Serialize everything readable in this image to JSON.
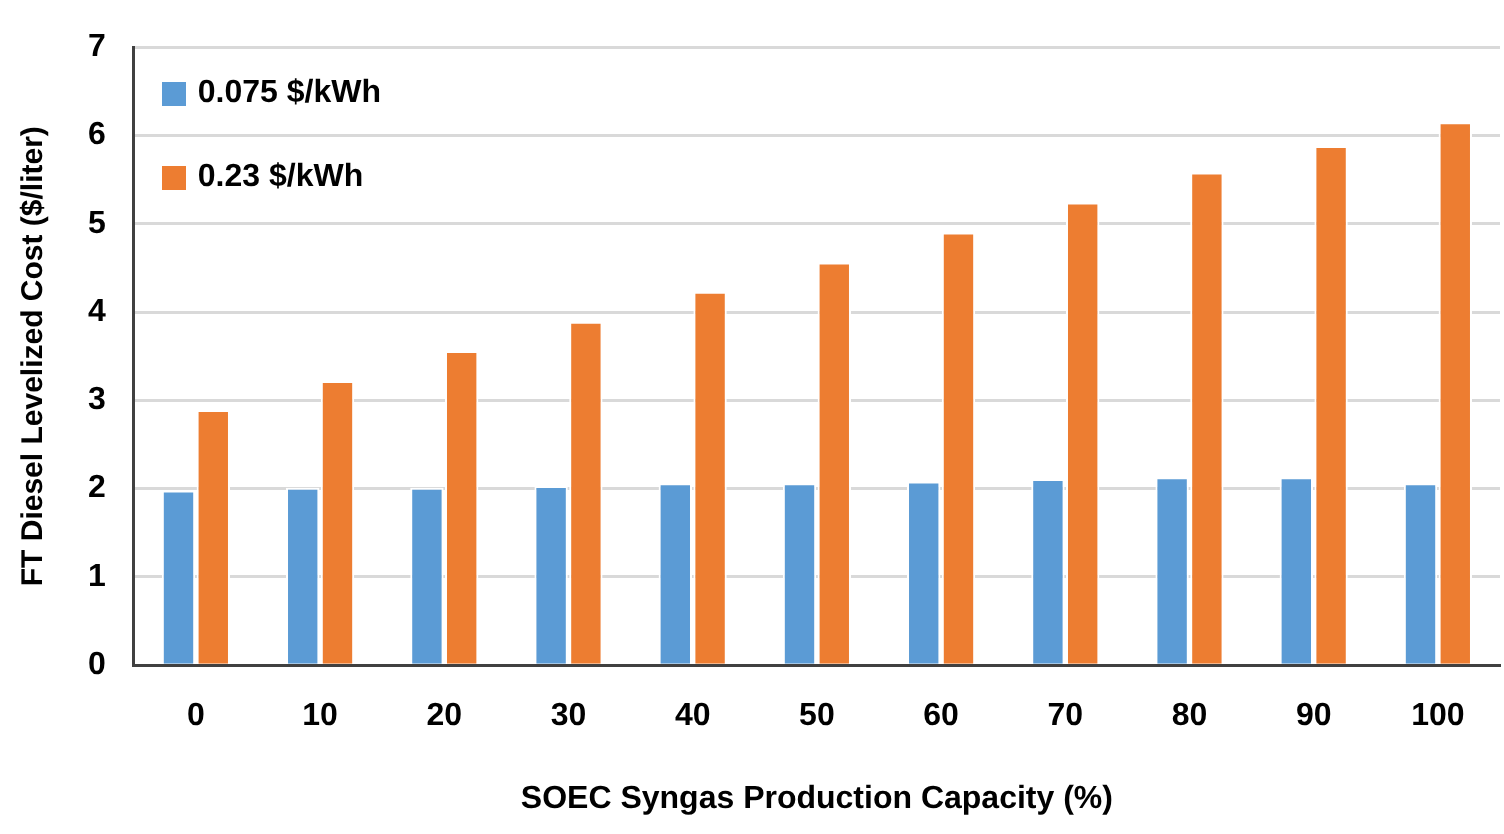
{
  "chart_data": {
    "type": "bar",
    "xlabel": "SOEC Syngas Production Capacity (%)",
    "ylabel": "FT Diesel Levelized Cost ($/liter)",
    "categories": [
      "0",
      "10",
      "20",
      "30",
      "40",
      "50",
      "60",
      "70",
      "80",
      "90",
      "100"
    ],
    "series": [
      {
        "name": "0.075 $/kWh",
        "color": "#5b9bd5",
        "values": [
          1.98,
          2.01,
          2.01,
          2.03,
          2.06,
          2.06,
          2.08,
          2.11,
          2.13,
          2.13,
          2.06
        ]
      },
      {
        "name": "0.23 $/kWh",
        "color": "#ed7d31",
        "values": [
          2.89,
          3.22,
          3.56,
          3.89,
          4.23,
          4.56,
          4.9,
          5.24,
          5.58,
          5.88,
          6.15
        ]
      }
    ],
    "ylim": [
      0,
      7
    ],
    "yticks": [
      0,
      1,
      2,
      3,
      4,
      5,
      6,
      7
    ],
    "grid": "y",
    "legend": "top left"
  }
}
